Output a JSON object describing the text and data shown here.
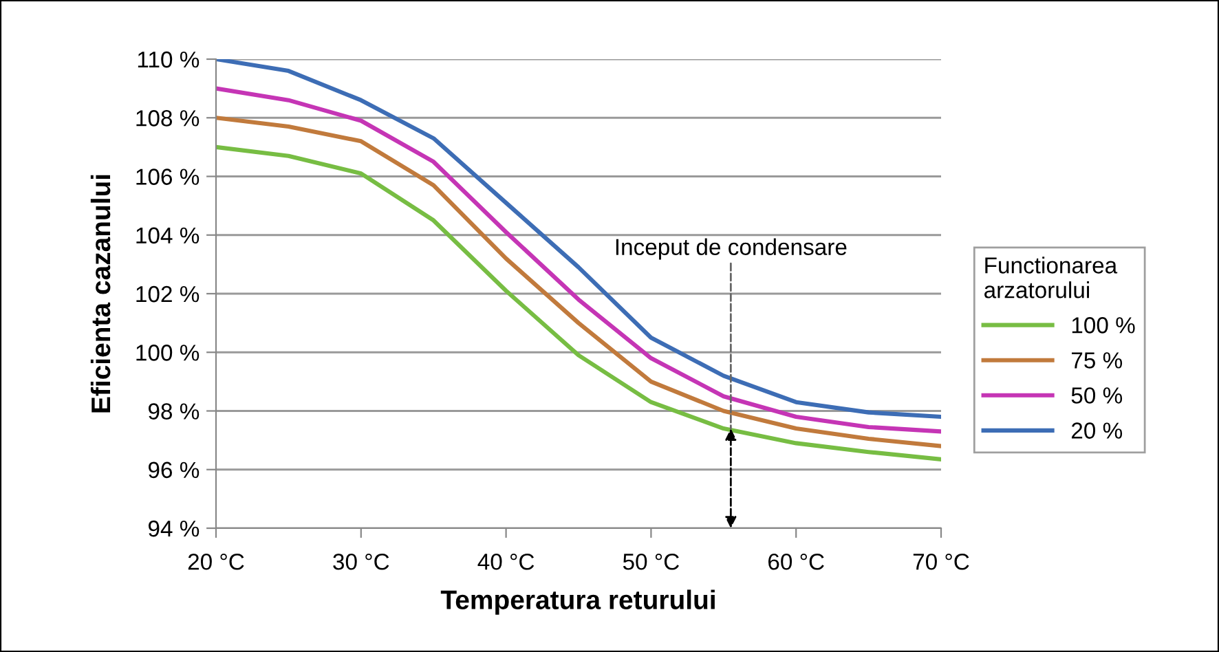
{
  "chart_data": {
    "type": "line",
    "xlabel": "Temperatura returului",
    "ylabel": "Eficienta cazanului",
    "legend_title": "Functionarea\narzatorului",
    "x": [
      20,
      25,
      30,
      35,
      40,
      45,
      50,
      55,
      60,
      65,
      70
    ],
    "series": [
      {
        "name": "100 %",
        "color": "#77bd43",
        "values": [
          107.0,
          106.7,
          106.1,
          104.5,
          102.1,
          99.9,
          98.3,
          97.4,
          96.9,
          96.6,
          96.35
        ]
      },
      {
        "name": "75 %",
        "color": "#c17a3c",
        "values": [
          108.0,
          107.7,
          107.2,
          105.7,
          103.2,
          101.0,
          99.0,
          98.0,
          97.4,
          97.05,
          96.8
        ]
      },
      {
        "name": "50 %",
        "color": "#c535b5",
        "values": [
          109.0,
          108.6,
          107.9,
          106.5,
          104.1,
          101.8,
          99.8,
          98.5,
          97.8,
          97.45,
          97.3
        ]
      },
      {
        "name": "20 %",
        "color": "#3d6db5",
        "values": [
          110.0,
          109.6,
          108.6,
          107.3,
          105.1,
          102.9,
          100.5,
          99.2,
          98.3,
          97.95,
          97.8
        ]
      }
    ],
    "xlim": [
      20,
      70
    ],
    "ylim": [
      94,
      110
    ],
    "xticks": [
      {
        "value": 20,
        "label": "20 °C"
      },
      {
        "value": 30,
        "label": "30 °C"
      },
      {
        "value": 40,
        "label": "40 °C"
      },
      {
        "value": 50,
        "label": "50 °C"
      },
      {
        "value": 60,
        "label": "60 °C"
      },
      {
        "value": 70,
        "label": "70 °C"
      }
    ],
    "yticks": [
      {
        "value": 94,
        "label": "94 %"
      },
      {
        "value": 96,
        "label": "96 %"
      },
      {
        "value": 98,
        "label": "98 %"
      },
      {
        "value": 100,
        "label": "100 %"
      },
      {
        "value": 102,
        "label": "102 %"
      },
      {
        "value": 104,
        "label": "104 %"
      },
      {
        "value": 106,
        "label": "106 %"
      },
      {
        "value": 108,
        "label": "108 %"
      },
      {
        "value": 110,
        "label": "110 %"
      }
    ],
    "annotations": [
      {
        "text": "Inceput de condensare",
        "x": 55.5,
        "y": 97.4
      }
    ],
    "grid": "y",
    "legend": "right",
    "marker": "none",
    "line_style": "solid"
  }
}
